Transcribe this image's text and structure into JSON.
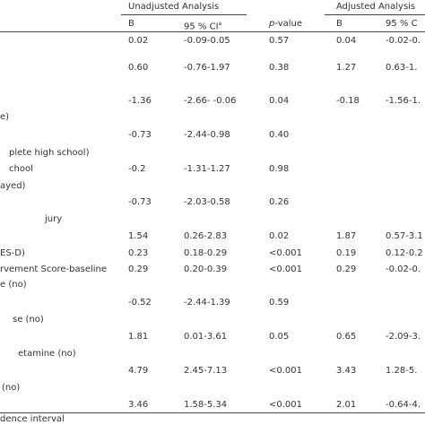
{
  "header": {
    "unadjusted": "Unadjusted Analysis",
    "adjusted": "Adjusted Analysis"
  },
  "columns": [
    {
      "text": "B"
    },
    {
      "text": "95 % CI",
      "sup": "a"
    },
    {
      "italic": "p",
      "text": "-value"
    },
    {
      "text": "B"
    },
    {
      "text": "95 % C"
    }
  ],
  "rows": [
    {
      "cells": [
        "0.02",
        "-0.09-0.05",
        "0.57",
        "0.04",
        "-0.02-0."
      ]
    },
    {
      "cells": [
        "0.60",
        "-0.76-1.97",
        "0.38",
        "1.27",
        "0.63-1."
      ]
    },
    {
      "cells": [
        "-1.36",
        "-2.66- -0.06",
        "0.04",
        "-0.18",
        "-1.56-1."
      ]
    },
    {
      "label": "e)"
    },
    {
      "cells": [
        "-0.73",
        "-2.44-0.98",
        "0.40"
      ]
    },
    {
      "label": "plete high school)"
    },
    {
      "label": "chool",
      "cells": [
        "-0.2",
        "-1.31-1.27",
        "0.98"
      ]
    },
    {
      "label": "ayed)"
    },
    {
      "cells": [
        "-0.73",
        "-2.03-0.58",
        "0.26"
      ]
    },
    {
      "label": "jury"
    },
    {
      "cells": [
        "1.54",
        "0.26-2.83",
        "0.02",
        "1.87",
        "0.57-3.1"
      ]
    },
    {
      "label": "ES-D)",
      "cells": [
        "0.23",
        "0.18-0.29",
        "<0.001",
        "0.19",
        "0.12-0.2"
      ]
    },
    {
      "label": "rvement Score-baseline",
      "cells": [
        "0.29",
        "0.20-0.39",
        "<0.001",
        "0.29",
        "-0.02-0."
      ]
    },
    {
      "label": "e (no)"
    },
    {
      "cells": [
        "-0.52",
        "-2.44-1.39",
        "0.59"
      ]
    },
    {
      "label": "se (no)"
    },
    {
      "cells": [
        "1.81",
        "0.01-3.61",
        "0.05",
        "0.65",
        "-2.09-3."
      ]
    },
    {
      "label": "etamine (no)"
    },
    {
      "cells": [
        "4.79",
        "2.45-7.13",
        "<0.001",
        "3.43",
        "1.28-5."
      ]
    },
    {
      "label": "(no)"
    },
    {
      "cells": [
        "3.46",
        "1.58-5.34",
        "<0.001",
        "2.01",
        "-0.64-4."
      ]
    }
  ],
  "footnote": "dence interval"
}
